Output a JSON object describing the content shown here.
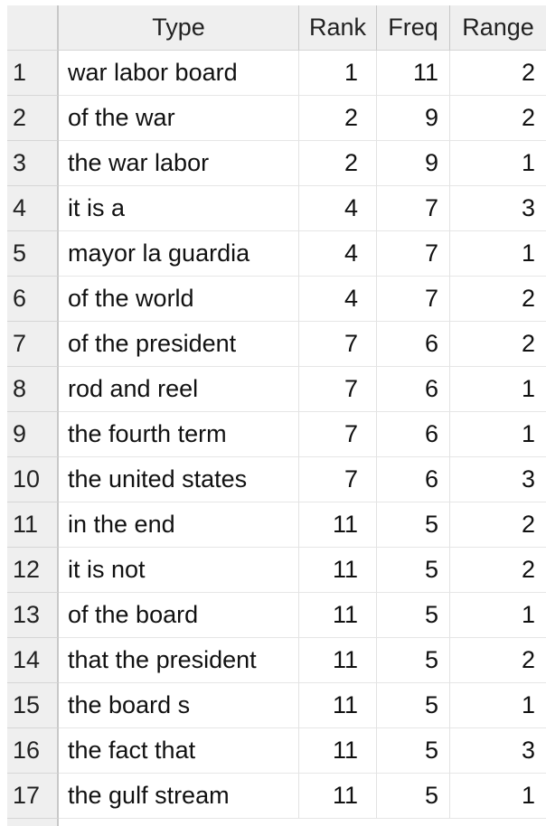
{
  "table": {
    "headers": {
      "type": "Type",
      "rank": "Rank",
      "freq": "Freq",
      "range": "Range"
    },
    "rows": [
      {
        "idx": "1",
        "type": "war labor board",
        "rank": "1",
        "freq": "11",
        "range": "2"
      },
      {
        "idx": "2",
        "type": "of the war",
        "rank": "2",
        "freq": "9",
        "range": "2"
      },
      {
        "idx": "3",
        "type": "the war labor",
        "rank": "2",
        "freq": "9",
        "range": "1"
      },
      {
        "idx": "4",
        "type": "it is a",
        "rank": "4",
        "freq": "7",
        "range": "3"
      },
      {
        "idx": "5",
        "type": "mayor la guardia",
        "rank": "4",
        "freq": "7",
        "range": "1"
      },
      {
        "idx": "6",
        "type": "of the world",
        "rank": "4",
        "freq": "7",
        "range": "2"
      },
      {
        "idx": "7",
        "type": "of the president",
        "rank": "7",
        "freq": "6",
        "range": "2"
      },
      {
        "idx": "8",
        "type": "rod and reel",
        "rank": "7",
        "freq": "6",
        "range": "1"
      },
      {
        "idx": "9",
        "type": "the fourth term",
        "rank": "7",
        "freq": "6",
        "range": "1"
      },
      {
        "idx": "10",
        "type": "the united states",
        "rank": "7",
        "freq": "6",
        "range": "3"
      },
      {
        "idx": "11",
        "type": "in the end",
        "rank": "11",
        "freq": "5",
        "range": "2"
      },
      {
        "idx": "12",
        "type": "it is not",
        "rank": "11",
        "freq": "5",
        "range": "2"
      },
      {
        "idx": "13",
        "type": "of the board",
        "rank": "11",
        "freq": "5",
        "range": "1"
      },
      {
        "idx": "14",
        "type": "that the president",
        "rank": "11",
        "freq": "5",
        "range": "2"
      },
      {
        "idx": "15",
        "type": "the board s",
        "rank": "11",
        "freq": "5",
        "range": "1"
      },
      {
        "idx": "16",
        "type": "the fact that",
        "rank": "11",
        "freq": "5",
        "range": "3"
      },
      {
        "idx": "17",
        "type": "the gulf stream",
        "rank": "11",
        "freq": "5",
        "range": "1"
      }
    ]
  }
}
